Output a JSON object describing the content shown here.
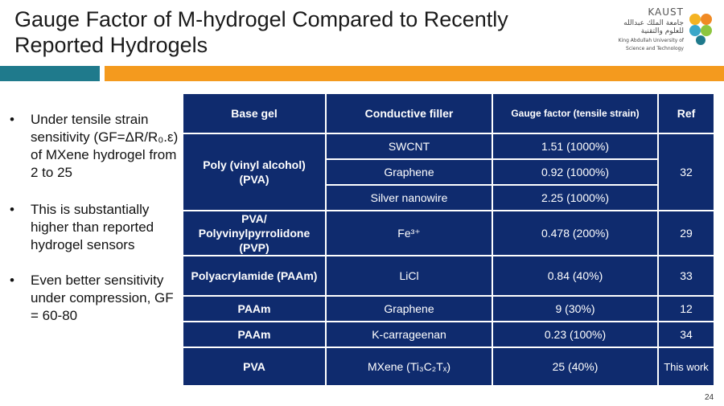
{
  "slide": {
    "title": "Gauge Factor of M-hydrogel Compared to Recently Reported Hydrogels",
    "page_number": "24",
    "colors": {
      "teal_bar": "#1f7a8c",
      "orange_bar": "#f49a1e",
      "table_bg": "#0f2b6e"
    }
  },
  "logo": {
    "name": "KAUST",
    "arabic": "جامعة الملك عبدالله للعلوم والتقنية",
    "english_line1": "King Abdullah University of",
    "english_line2": "Science and Technology"
  },
  "bullets": [
    {
      "text": "Under tensile strain sensitivity (GF=ΔR/R₀.ε) of MXene hydrogel from 2 to 25"
    },
    {
      "text": "This is substantially higher than reported hydrogel sensors"
    },
    {
      "text": "Even better sensitivity under compression, GF = 60-80"
    }
  ],
  "table": {
    "headers": [
      "Base gel",
      "Conductive filler",
      "Gauge factor (tensile strain)",
      "Ref"
    ],
    "groups": [
      {
        "base": "Poly (vinyl alcohol) (PVA)",
        "ref": "32",
        "rows": [
          {
            "filler": "SWCNT",
            "gf": "1.51 (1000%)"
          },
          {
            "filler": "Graphene",
            "gf": "0.92 (1000%)"
          },
          {
            "filler": "Silver nanowire",
            "gf": "2.25 (1000%)"
          }
        ]
      },
      {
        "base": "PVA/ Polyvinylpyrrolidone (PVP)",
        "ref": "29",
        "rows": [
          {
            "filler": "Fe³⁺",
            "gf": "0.478 (200%)"
          }
        ]
      },
      {
        "base": "Polyacrylamide (PAAm)",
        "ref": "33",
        "rows": [
          {
            "filler": "LiCl",
            "gf": "0.84 (40%)"
          }
        ]
      },
      {
        "base": "PAAm",
        "ref": "12",
        "rows": [
          {
            "filler": "Graphene",
            "gf": "9 (30%)"
          }
        ]
      },
      {
        "base": "PAAm",
        "ref": "34",
        "rows": [
          {
            "filler": "K-carrageenan",
            "gf": "0.23 (100%)"
          }
        ]
      },
      {
        "base": "PVA",
        "ref": "This work",
        "rows": [
          {
            "filler": "MXene (Ti₃C₂Tₓ)",
            "gf": "25 (40%)"
          }
        ]
      }
    ]
  }
}
